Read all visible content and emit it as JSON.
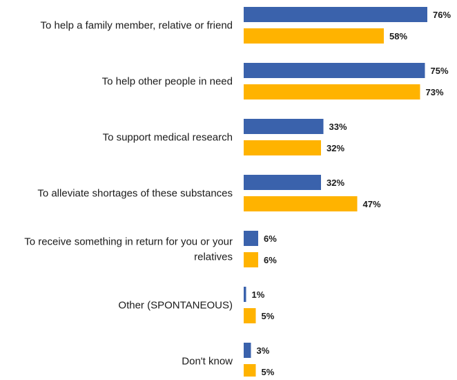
{
  "chart_data": {
    "type": "bar",
    "orientation": "horizontal",
    "title": "",
    "xlabel": "",
    "ylabel": "",
    "xlim": [
      0,
      100
    ],
    "grid": false,
    "legend": "none",
    "categories": [
      [
        "To help a family member, relative or friend"
      ],
      [
        "To help other people in need"
      ],
      [
        "To support medical research"
      ],
      [
        "To alleviate shortages of these substances"
      ],
      [
        "To receive something in return for you or your",
        "relatives"
      ],
      [
        "Other (SPONTANEOUS)"
      ],
      [
        "Don't know"
      ]
    ],
    "series": [
      {
        "color": "#3A62AC",
        "values": [
          76,
          75,
          33,
          32,
          6,
          1,
          3
        ],
        "labels": [
          "76%",
          "75%",
          "33%",
          "32%",
          "6%",
          "1%",
          "3%"
        ]
      },
      {
        "color": "#FFB300",
        "values": [
          58,
          73,
          32,
          47,
          6,
          5,
          5
        ],
        "labels": [
          "58%",
          "73%",
          "32%",
          "47%",
          "6%",
          "5%",
          "5%"
        ]
      }
    ]
  }
}
